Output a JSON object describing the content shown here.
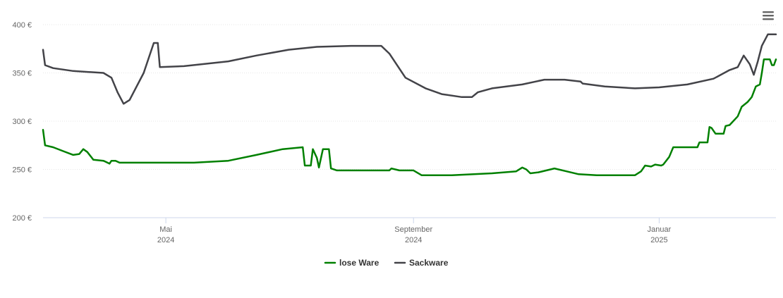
{
  "chart_data": {
    "type": "line",
    "y_ticks": [
      "200 €",
      "250 €",
      "300 €",
      "350 €",
      "400 €"
    ],
    "ylim": [
      200,
      400
    ],
    "x_ticks": [
      {
        "date": "2024-05-01",
        "month": "Mai",
        "year": "2024"
      },
      {
        "date": "2024-09-01",
        "month": "September",
        "year": "2024"
      },
      {
        "date": "2025-01-01",
        "month": "Januar",
        "year": "2025"
      }
    ],
    "xlim": [
      "2024-03-01",
      "2025-02-28"
    ],
    "grid": "horizontal",
    "legend_position": "bottom-center",
    "series": [
      {
        "name": "lose Ware",
        "color": "#008000",
        "points": [
          [
            "2024-03-01",
            291
          ],
          [
            "2024-03-02",
            275
          ],
          [
            "2024-03-06",
            273
          ],
          [
            "2024-03-11",
            269
          ],
          [
            "2024-03-16",
            265
          ],
          [
            "2024-03-19",
            266
          ],
          [
            "2024-03-21",
            271
          ],
          [
            "2024-03-23",
            268
          ],
          [
            "2024-03-26",
            260
          ],
          [
            "2024-03-31",
            259
          ],
          [
            "2024-04-01",
            258
          ],
          [
            "2024-04-03",
            256
          ],
          [
            "2024-04-04",
            259
          ],
          [
            "2024-04-06",
            259
          ],
          [
            "2024-04-08",
            257
          ],
          [
            "2024-04-20",
            257
          ],
          [
            "2024-05-15",
            257
          ],
          [
            "2024-06-01",
            259
          ],
          [
            "2024-06-15",
            265
          ],
          [
            "2024-06-28",
            271
          ],
          [
            "2024-07-08",
            273
          ],
          [
            "2024-07-09",
            254
          ],
          [
            "2024-07-12",
            254
          ],
          [
            "2024-07-13",
            271
          ],
          [
            "2024-07-15",
            262
          ],
          [
            "2024-07-16",
            252
          ],
          [
            "2024-07-18",
            271
          ],
          [
            "2024-07-21",
            271
          ],
          [
            "2024-07-22",
            251
          ],
          [
            "2024-07-25",
            249
          ],
          [
            "2024-08-20",
            249
          ],
          [
            "2024-08-21",
            251
          ],
          [
            "2024-08-25",
            249
          ],
          [
            "2024-09-01",
            249
          ],
          [
            "2024-09-05",
            244
          ],
          [
            "2024-09-20",
            244
          ],
          [
            "2024-10-10",
            246
          ],
          [
            "2024-10-22",
            248
          ],
          [
            "2024-10-25",
            252
          ],
          [
            "2024-10-27",
            250
          ],
          [
            "2024-10-29",
            246
          ],
          [
            "2024-11-02",
            247
          ],
          [
            "2024-11-10",
            251
          ],
          [
            "2024-11-16",
            248
          ],
          [
            "2024-11-22",
            245
          ],
          [
            "2024-12-01",
            244
          ],
          [
            "2024-12-20",
            244
          ],
          [
            "2024-12-23",
            248
          ],
          [
            "2024-12-25",
            254
          ],
          [
            "2024-12-28",
            253
          ],
          [
            "2024-12-30",
            255
          ],
          [
            "2025-01-02",
            254
          ],
          [
            "2025-01-03",
            255
          ],
          [
            "2025-01-06",
            263
          ],
          [
            "2025-01-08",
            273
          ],
          [
            "2025-01-20",
            273
          ],
          [
            "2025-01-21",
            278
          ],
          [
            "2025-01-25",
            278
          ],
          [
            "2025-01-26",
            294
          ],
          [
            "2025-01-27",
            293
          ],
          [
            "2025-01-29",
            287
          ],
          [
            "2025-02-02",
            287
          ],
          [
            "2025-02-03",
            295
          ],
          [
            "2025-02-05",
            296
          ],
          [
            "2025-02-09",
            305
          ],
          [
            "2025-02-11",
            315
          ],
          [
            "2025-02-14",
            320
          ],
          [
            "2025-02-16",
            325
          ],
          [
            "2025-02-18",
            336
          ],
          [
            "2025-02-20",
            338
          ],
          [
            "2025-02-21",
            350
          ],
          [
            "2025-02-22",
            364
          ],
          [
            "2025-02-23",
            364
          ],
          [
            "2025-02-25",
            364
          ],
          [
            "2025-02-26",
            358
          ],
          [
            "2025-02-27",
            358
          ],
          [
            "2025-02-28",
            364
          ]
        ]
      },
      {
        "name": "Sackware",
        "color": "#434348",
        "points": [
          [
            "2024-03-01",
            374
          ],
          [
            "2024-03-02",
            358
          ],
          [
            "2024-03-06",
            355
          ],
          [
            "2024-03-16",
            352
          ],
          [
            "2024-03-31",
            350
          ],
          [
            "2024-04-04",
            345
          ],
          [
            "2024-04-07",
            330
          ],
          [
            "2024-04-10",
            318
          ],
          [
            "2024-04-13",
            322
          ],
          [
            "2024-04-20",
            350
          ],
          [
            "2024-04-25",
            381
          ],
          [
            "2024-04-27",
            381
          ],
          [
            "2024-04-28",
            356
          ],
          [
            "2024-05-10",
            357
          ],
          [
            "2024-06-01",
            362
          ],
          [
            "2024-06-15",
            368
          ],
          [
            "2024-07-01",
            374
          ],
          [
            "2024-07-15",
            377
          ],
          [
            "2024-08-01",
            378
          ],
          [
            "2024-08-16",
            378
          ],
          [
            "2024-08-20",
            370
          ],
          [
            "2024-08-28",
            345
          ],
          [
            "2024-09-07",
            334
          ],
          [
            "2024-09-15",
            328
          ],
          [
            "2024-09-25",
            325
          ],
          [
            "2024-09-30",
            325
          ],
          [
            "2024-10-03",
            330
          ],
          [
            "2024-10-10",
            334
          ],
          [
            "2024-10-25",
            338
          ],
          [
            "2024-11-05",
            343
          ],
          [
            "2024-11-15",
            343
          ],
          [
            "2024-11-23",
            341
          ],
          [
            "2024-11-24",
            339
          ],
          [
            "2024-12-05",
            336
          ],
          [
            "2024-12-20",
            334
          ],
          [
            "2025-01-01",
            335
          ],
          [
            "2025-01-15",
            338
          ],
          [
            "2025-01-28",
            344
          ],
          [
            "2025-02-05",
            353
          ],
          [
            "2025-02-09",
            356
          ],
          [
            "2025-02-12",
            368
          ],
          [
            "2025-02-15",
            359
          ],
          [
            "2025-02-17",
            348
          ],
          [
            "2025-02-19",
            362
          ],
          [
            "2025-02-21",
            378
          ],
          [
            "2025-02-24",
            390
          ],
          [
            "2025-02-28",
            390
          ]
        ]
      }
    ]
  }
}
